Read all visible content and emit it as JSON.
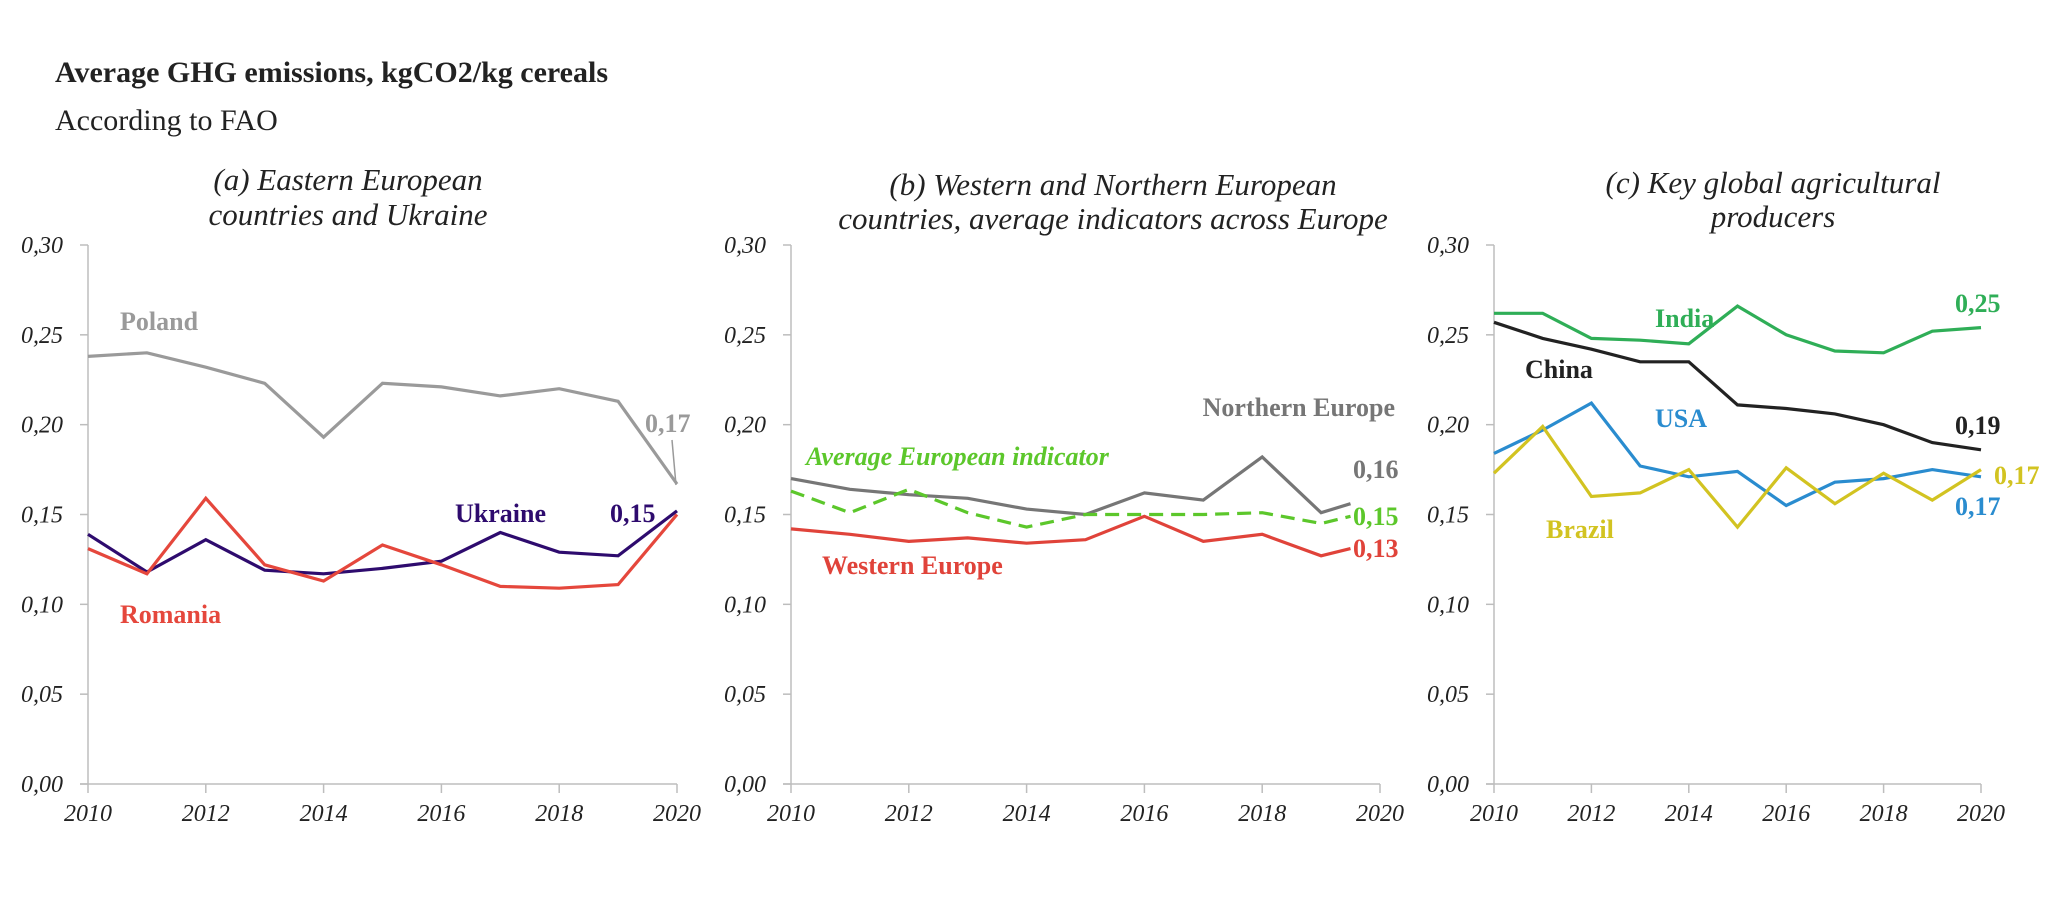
{
  "title": "Average GHG emissions, kgCO2/kg cereals",
  "subtitle": "According to FAO",
  "chart_data": [
    {
      "type": "line",
      "title": "(a) Eastern European countries and Ukraine",
      "title_lines": [
        "(a) Eastern European",
        "countries and Ukraine"
      ],
      "xlabel": "",
      "ylabel": "",
      "x": [
        2010,
        2011,
        2012,
        2013,
        2014,
        2015,
        2016,
        2017,
        2018,
        2019,
        2020
      ],
      "xlim": [
        2010,
        2020
      ],
      "ylim": [
        0,
        0.3
      ],
      "x_ticks": [
        "2010",
        "2012",
        "2014",
        "2016",
        "2018",
        "2020"
      ],
      "y_ticks": [
        "0,00",
        "0,05",
        "0,10",
        "0,15",
        "0,20",
        "0,25",
        "0,30"
      ],
      "grid": false,
      "series": [
        {
          "name": "Poland",
          "color": "#9a9a9a",
          "dashed": false,
          "values": [
            0.238,
            0.24,
            0.232,
            0.223,
            0.193,
            0.223,
            0.221,
            0.216,
            0.22,
            0.213,
            0.167
          ],
          "end_label": "0,17"
        },
        {
          "name": "Ukraine",
          "color": "#2e0b6e",
          "dashed": false,
          "values": [
            0.139,
            0.118,
            0.136,
            0.119,
            0.117,
            0.12,
            0.124,
            0.14,
            0.129,
            0.127,
            0.152
          ],
          "end_label": "0,15"
        },
        {
          "name": "Romania",
          "color": "#e5473c",
          "dashed": false,
          "values": [
            0.131,
            0.117,
            0.159,
            0.122,
            0.113,
            0.133,
            0.122,
            0.11,
            0.109,
            0.111,
            0.15
          ],
          "end_label": ""
        }
      ]
    },
    {
      "type": "line",
      "title": "(b) Western and Northern European countries, average indicators across Europe",
      "title_lines": [
        "(b) Western and Northern European",
        "countries, average indicators across Europe"
      ],
      "xlabel": "",
      "ylabel": "",
      "x": [
        2010,
        2011,
        2012,
        2013,
        2014,
        2015,
        2016,
        2017,
        2018,
        2019,
        2019.5
      ],
      "xlim": [
        2010,
        2020
      ],
      "ylim": [
        0,
        0.3
      ],
      "x_ticks": [
        "2010",
        "2012",
        "2014",
        "2016",
        "2018",
        "2020"
      ],
      "y_ticks": [
        "0,00",
        "0,05",
        "0,10",
        "0,15",
        "0,20",
        "0,25",
        "0,30"
      ],
      "grid": false,
      "series": [
        {
          "name": "Northern Europe",
          "color": "#767676",
          "dashed": false,
          "values": [
            0.17,
            0.164,
            0.161,
            0.159,
            0.153,
            0.15,
            0.162,
            0.158,
            0.182,
            0.151,
            0.156
          ],
          "end_label": "0,16"
        },
        {
          "name": "Average European indicator",
          "color": "#5cc72b",
          "dashed": true,
          "values": [
            0.163,
            0.151,
            0.164,
            0.151,
            0.143,
            0.15,
            0.15,
            0.15,
            0.151,
            0.145,
            0.149
          ],
          "end_label": "0,15"
        },
        {
          "name": "Western Europe",
          "color": "#e0433a",
          "dashed": false,
          "values": [
            0.142,
            0.139,
            0.135,
            0.137,
            0.134,
            0.136,
            0.149,
            0.135,
            0.139,
            0.127,
            0.131
          ],
          "end_label": "0,13"
        }
      ]
    },
    {
      "type": "line",
      "title": "(c) Key global agricultural producers",
      "title_lines": [
        "(c) Key global agricultural",
        "producers"
      ],
      "xlabel": "",
      "ylabel": "",
      "x": [
        2010,
        2011,
        2012,
        2013,
        2014,
        2015,
        2016,
        2017,
        2018,
        2019,
        2020
      ],
      "xlim": [
        2010,
        2020
      ],
      "ylim": [
        0,
        0.3
      ],
      "x_ticks": [
        "2010",
        "2012",
        "2014",
        "2016",
        "2018",
        "2020"
      ],
      "y_ticks": [
        "0,00",
        "0,05",
        "0,10",
        "0,15",
        "0,20",
        "0,25",
        "0,30"
      ],
      "grid": false,
      "series": [
        {
          "name": "India",
          "color": "#2fae57",
          "dashed": false,
          "values": [
            0.262,
            0.262,
            0.248,
            0.247,
            0.245,
            0.266,
            0.25,
            0.241,
            0.24,
            0.252,
            0.254
          ],
          "end_label": "0,25"
        },
        {
          "name": "China",
          "color": "#222222",
          "dashed": false,
          "values": [
            0.257,
            0.248,
            0.242,
            0.235,
            0.235,
            0.211,
            0.209,
            0.206,
            0.2,
            0.19,
            0.186
          ],
          "end_label": "0,19"
        },
        {
          "name": "USA",
          "color": "#2a8ccf",
          "dashed": false,
          "values": [
            0.184,
            0.197,
            0.212,
            0.177,
            0.171,
            0.174,
            0.155,
            0.168,
            0.17,
            0.175,
            0.171
          ],
          "end_label": "0,17"
        },
        {
          "name": "Brazil",
          "color": "#d2c321",
          "dashed": false,
          "values": [
            0.173,
            0.199,
            0.16,
            0.162,
            0.175,
            0.143,
            0.176,
            0.156,
            0.173,
            0.158,
            0.175
          ],
          "end_label": "0,17"
        }
      ]
    }
  ]
}
